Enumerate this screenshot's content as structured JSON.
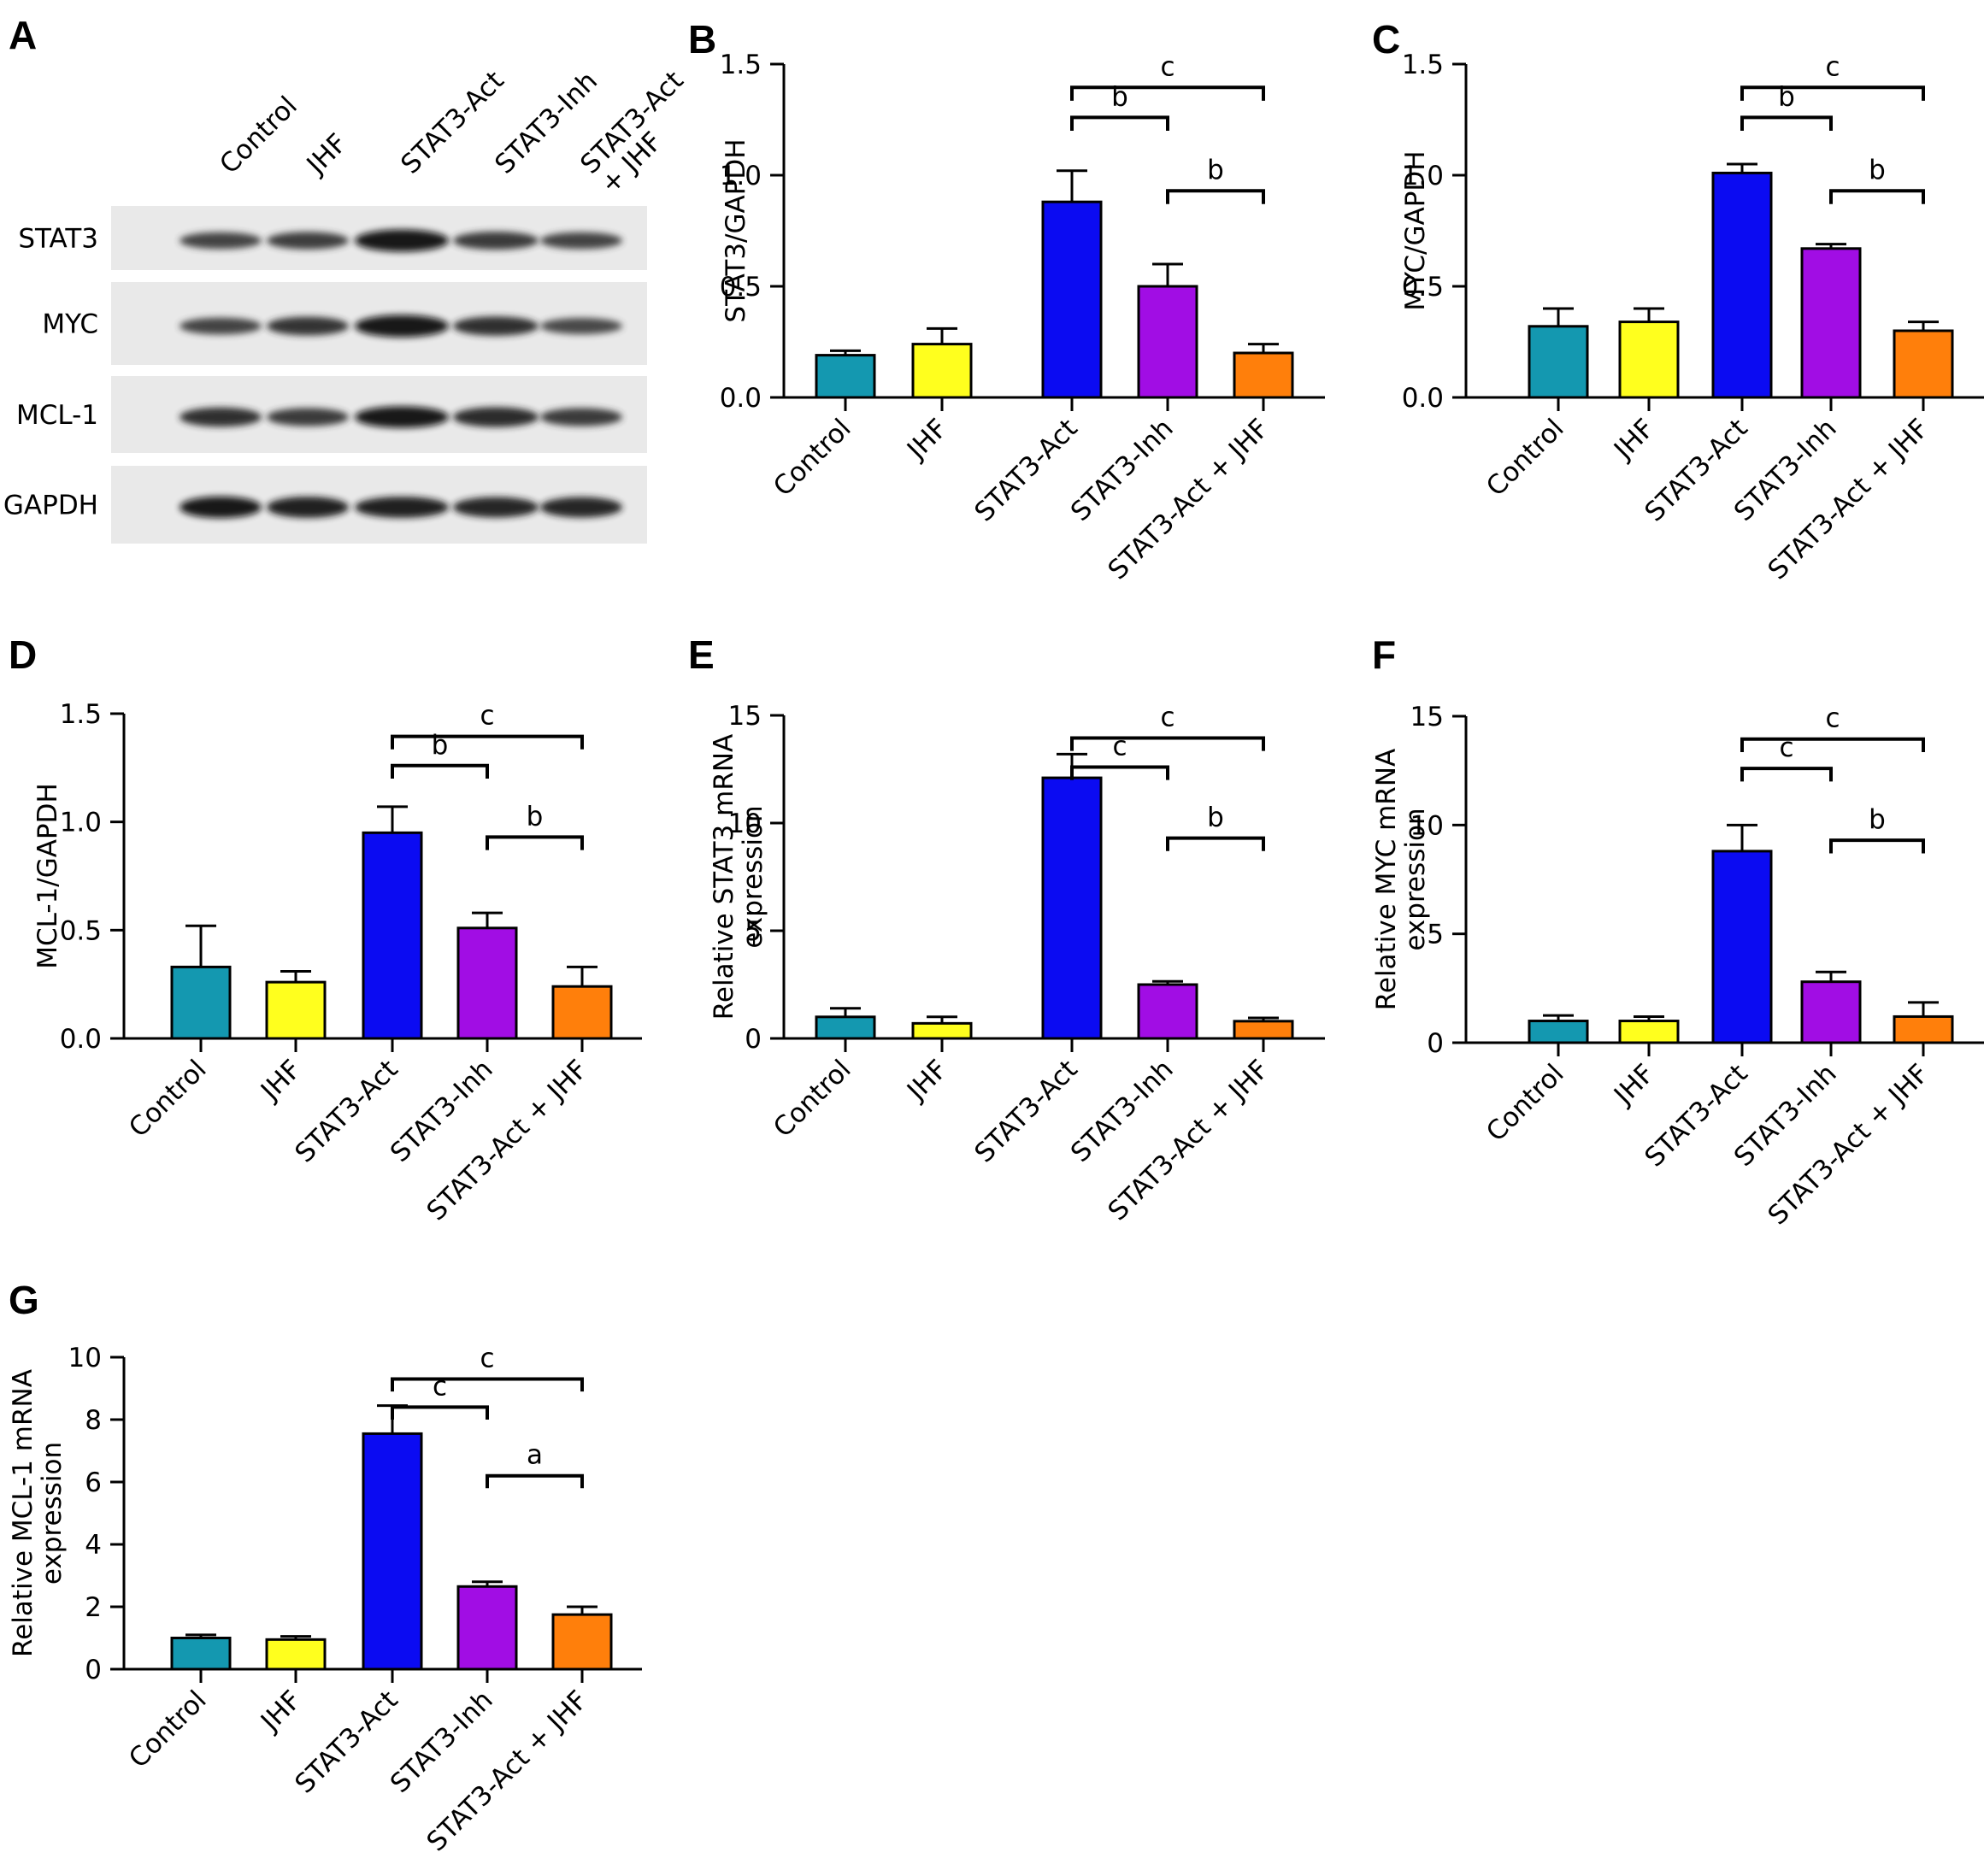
{
  "figure": {
    "groups": [
      "Control",
      "JHF",
      "STAT3-Act",
      "STAT3-Inh",
      "STAT3-Act + JHF"
    ],
    "bar_colors": [
      "#1498b0",
      "#ffff1e",
      "#0b0bf2",
      "#a10de4",
      "#ff7f0b"
    ]
  },
  "blot": {
    "letter": "A",
    "lanes": [
      [
        "Control"
      ],
      [
        "JHF"
      ],
      [
        "STAT3-Act"
      ],
      [
        "STAT3-Inh"
      ],
      [
        "STAT3-Act",
        "+ JHF"
      ]
    ],
    "rows": [
      {
        "label": "STAT3",
        "intensity": [
          0.55,
          0.6,
          1.0,
          0.65,
          0.55
        ]
      },
      {
        "label": "MYC",
        "intensity": [
          0.55,
          0.7,
          1.0,
          0.75,
          0.5
        ]
      },
      {
        "label": "MCL-1",
        "intensity": [
          0.75,
          0.65,
          0.95,
          0.8,
          0.65
        ]
      },
      {
        "label": "GAPDH",
        "intensity": [
          0.95,
          0.9,
          0.9,
          0.85,
          0.85
        ]
      }
    ]
  },
  "chart_data": [
    {
      "panel": "B",
      "type": "bar",
      "categories": [
        "Control",
        "JHF",
        "STAT3-Act",
        "STAT3-Inh",
        "STAT3-Act + JHF"
      ],
      "values": [
        0.19,
        0.24,
        0.88,
        0.5,
        0.2
      ],
      "errors": [
        0.02,
        0.07,
        0.14,
        0.1,
        0.04
      ],
      "ylabel": [
        "STAT3/GAPDH"
      ],
      "ylim": [
        0,
        1.5
      ],
      "yticks": [
        "0.0",
        "0.5",
        "1.0",
        "1.5"
      ],
      "ytick_values": [
        0,
        0.5,
        1.0,
        1.5
      ],
      "brackets": [
        {
          "from": 2,
          "to": 4,
          "label": "c"
        },
        {
          "from": 2,
          "to": 3,
          "label": "b"
        },
        {
          "from": 3,
          "to": 4,
          "label": "b"
        }
      ]
    },
    {
      "panel": "C",
      "type": "bar",
      "categories": [
        "Control",
        "JHF",
        "STAT3-Act",
        "STAT3-Inh",
        "STAT3-Act + JHF"
      ],
      "values": [
        0.32,
        0.34,
        1.01,
        0.67,
        0.3
      ],
      "errors": [
        0.08,
        0.06,
        0.04,
        0.02,
        0.04
      ],
      "ylabel": [
        "MYC/GAPDH"
      ],
      "ylim": [
        0,
        1.5
      ],
      "yticks": [
        "0.0",
        "0.5",
        "1.0",
        "1.5"
      ],
      "ytick_values": [
        0,
        0.5,
        1.0,
        1.5
      ],
      "brackets": [
        {
          "from": 2,
          "to": 4,
          "label": "c"
        },
        {
          "from": 2,
          "to": 3,
          "label": "b"
        },
        {
          "from": 3,
          "to": 4,
          "label": "b"
        }
      ]
    },
    {
      "panel": "D",
      "type": "bar",
      "categories": [
        "Control",
        "JHF",
        "STAT3-Act",
        "STAT3-Inh",
        "STAT3-Act + JHF"
      ],
      "values": [
        0.33,
        0.26,
        0.95,
        0.51,
        0.24
      ],
      "errors": [
        0.19,
        0.05,
        0.12,
        0.07,
        0.09
      ],
      "ylabel": [
        "MCL-1/GAPDH"
      ],
      "ylim": [
        0,
        1.5
      ],
      "yticks": [
        "0.0",
        "0.5",
        "1.0",
        "1.5"
      ],
      "ytick_values": [
        0,
        0.5,
        1.0,
        1.5
      ],
      "brackets": [
        {
          "from": 2,
          "to": 4,
          "label": "c"
        },
        {
          "from": 2,
          "to": 3,
          "label": "b"
        },
        {
          "from": 3,
          "to": 4,
          "label": "b"
        }
      ]
    },
    {
      "panel": "E",
      "type": "bar",
      "categories": [
        "Control",
        "JHF",
        "STAT3-Act",
        "STAT3-Inh",
        "STAT3-Act + JHF"
      ],
      "values": [
        1.0,
        0.7,
        12.1,
        2.5,
        0.8
      ],
      "errors": [
        0.4,
        0.3,
        1.1,
        0.15,
        0.15
      ],
      "ylabel": [
        "Relative STAT3 mRNA",
        "expression"
      ],
      "ylim": [
        0,
        15
      ],
      "yticks": [
        "0",
        "5",
        "10",
        "15"
      ],
      "ytick_values": [
        0,
        5,
        10,
        15
      ],
      "brackets": [
        {
          "from": 2,
          "to": 4,
          "label": "c"
        },
        {
          "from": 2,
          "to": 3,
          "label": "c"
        },
        {
          "from": 3,
          "to": 4,
          "label": "b"
        }
      ]
    },
    {
      "panel": "F",
      "type": "bar",
      "categories": [
        "Control",
        "JHF",
        "STAT3-Act",
        "STAT3-Inh",
        "STAT3-Act + JHF"
      ],
      "values": [
        1.0,
        1.0,
        8.8,
        2.8,
        1.2
      ],
      "errors": [
        0.25,
        0.2,
        1.2,
        0.45,
        0.65
      ],
      "ylabel": [
        "Relative MYC mRNA",
        "expression"
      ],
      "ylim": [
        0,
        15
      ],
      "yticks": [
        "0",
        "5",
        "10",
        "15"
      ],
      "ytick_values": [
        0,
        5,
        10,
        15
      ],
      "brackets": [
        {
          "from": 2,
          "to": 4,
          "label": "c"
        },
        {
          "from": 2,
          "to": 3,
          "label": "c"
        },
        {
          "from": 3,
          "to": 4,
          "label": "b"
        }
      ]
    },
    {
      "panel": "G",
      "type": "bar",
      "categories": [
        "Control",
        "JHF",
        "STAT3-Act",
        "STAT3-Inh",
        "STAT3-Act + JHF"
      ],
      "values": [
        1.0,
        0.95,
        7.55,
        2.65,
        1.75
      ],
      "errors": [
        0.1,
        0.1,
        0.9,
        0.15,
        0.25
      ],
      "ylabel": [
        "Relative MCL-1 mRNA",
        "expression"
      ],
      "ylim": [
        0,
        10
      ],
      "yticks": [
        "0",
        "2",
        "4",
        "6",
        "8",
        "10"
      ],
      "ytick_values": [
        0,
        2,
        4,
        6,
        8,
        10
      ],
      "brackets": [
        {
          "from": 2,
          "to": 4,
          "label": "c"
        },
        {
          "from": 2,
          "to": 3,
          "label": "c"
        },
        {
          "from": 3,
          "to": 4,
          "label": "a"
        }
      ]
    }
  ]
}
